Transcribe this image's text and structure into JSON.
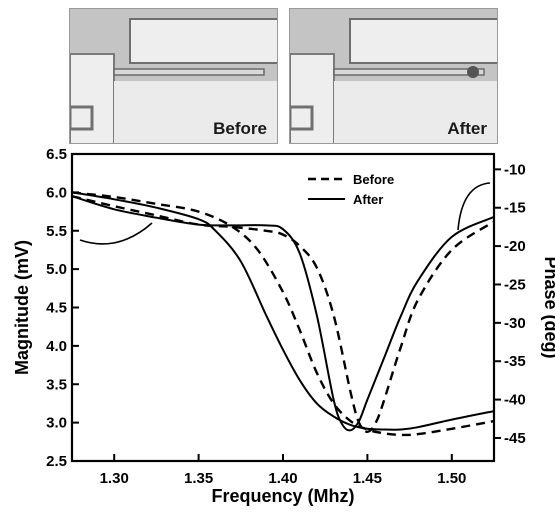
{
  "images": {
    "before_label": "Before",
    "after_label": "After"
  },
  "chart_data": {
    "type": "line",
    "xlabel": "Frequency (Mhz)",
    "ylabel_left": "Magnitude (mV)",
    "ylabel_right": "Phase (deg)",
    "xlim": [
      1.275,
      1.525
    ],
    "ylim_left": [
      2.5,
      6.5
    ],
    "ylim_right": [
      -48,
      -8
    ],
    "x_ticks": [
      1.3,
      1.35,
      1.4,
      1.45,
      1.5
    ],
    "x_tick_labels": [
      "1.30",
      "1.35",
      "1.40",
      "1.45",
      "1.50"
    ],
    "y_left_ticks": [
      2.5,
      3.0,
      3.5,
      4.0,
      4.5,
      5.0,
      5.5,
      6.0,
      6.5
    ],
    "y_left_tick_labels": [
      "2.5",
      "3.0",
      "3.5",
      "4.0",
      "4.5",
      "5.0",
      "5.5",
      "6.0",
      "6.5"
    ],
    "y_right_ticks": [
      -10,
      -15,
      -20,
      -25,
      -30,
      -35,
      -40,
      -45
    ],
    "y_right_tick_labels": [
      "-10",
      "-15",
      "-20",
      "-25",
      "-30",
      "-35",
      "-40",
      "-45"
    ],
    "legend": {
      "placement": "top-right",
      "entries": [
        "Before",
        "After"
      ]
    },
    "series": [
      {
        "name": "Before",
        "quantity": "magnitude",
        "axis": "left",
        "style": "dashed",
        "x": [
          1.275,
          1.3,
          1.325,
          1.35,
          1.37,
          1.39,
          1.4,
          1.41,
          1.42,
          1.43,
          1.44,
          1.445,
          1.45,
          1.455,
          1.46,
          1.47,
          1.48,
          1.5,
          1.525
        ],
        "y": [
          5.95,
          5.82,
          5.7,
          5.58,
          5.55,
          5.5,
          5.45,
          5.3,
          5.02,
          4.4,
          3.4,
          3.0,
          2.88,
          3.0,
          3.3,
          4.0,
          4.6,
          5.25,
          5.62
        ]
      },
      {
        "name": "After",
        "quantity": "magnitude",
        "axis": "left",
        "style": "solid",
        "x": [
          1.275,
          1.3,
          1.325,
          1.35,
          1.37,
          1.39,
          1.4,
          1.41,
          1.42,
          1.43,
          1.435,
          1.44,
          1.445,
          1.45,
          1.46,
          1.47,
          1.48,
          1.5,
          1.525
        ],
        "y": [
          5.95,
          5.78,
          5.67,
          5.58,
          5.57,
          5.57,
          5.52,
          5.2,
          4.4,
          3.3,
          2.98,
          2.9,
          3.02,
          3.3,
          3.85,
          4.4,
          4.85,
          5.42,
          5.68
        ]
      },
      {
        "name": "Before",
        "quantity": "phase",
        "axis": "right",
        "style": "dashed",
        "x": [
          1.275,
          1.3,
          1.325,
          1.35,
          1.37,
          1.385,
          1.4,
          1.41,
          1.42,
          1.43,
          1.44,
          1.45,
          1.46,
          1.47,
          1.48,
          1.5,
          1.525
        ],
        "y": [
          -13.0,
          -13.6,
          -14.5,
          -15.5,
          -17.5,
          -20.5,
          -26.0,
          -31.0,
          -36.5,
          -40.5,
          -42.8,
          -43.9,
          -44.4,
          -44.6,
          -44.5,
          -43.8,
          -42.8
        ]
      },
      {
        "name": "After",
        "quantity": "phase",
        "axis": "right",
        "style": "solid",
        "x": [
          1.275,
          1.3,
          1.325,
          1.35,
          1.36,
          1.375,
          1.39,
          1.4,
          1.41,
          1.42,
          1.43,
          1.44,
          1.45,
          1.46,
          1.47,
          1.48,
          1.5,
          1.525
        ],
        "y": [
          -13.0,
          -13.9,
          -15.0,
          -16.5,
          -18.0,
          -22.0,
          -29.0,
          -33.5,
          -37.5,
          -40.5,
          -42.2,
          -43.3,
          -43.8,
          -43.9,
          -43.9,
          -43.6,
          -42.6,
          -41.5
        ]
      }
    ]
  }
}
